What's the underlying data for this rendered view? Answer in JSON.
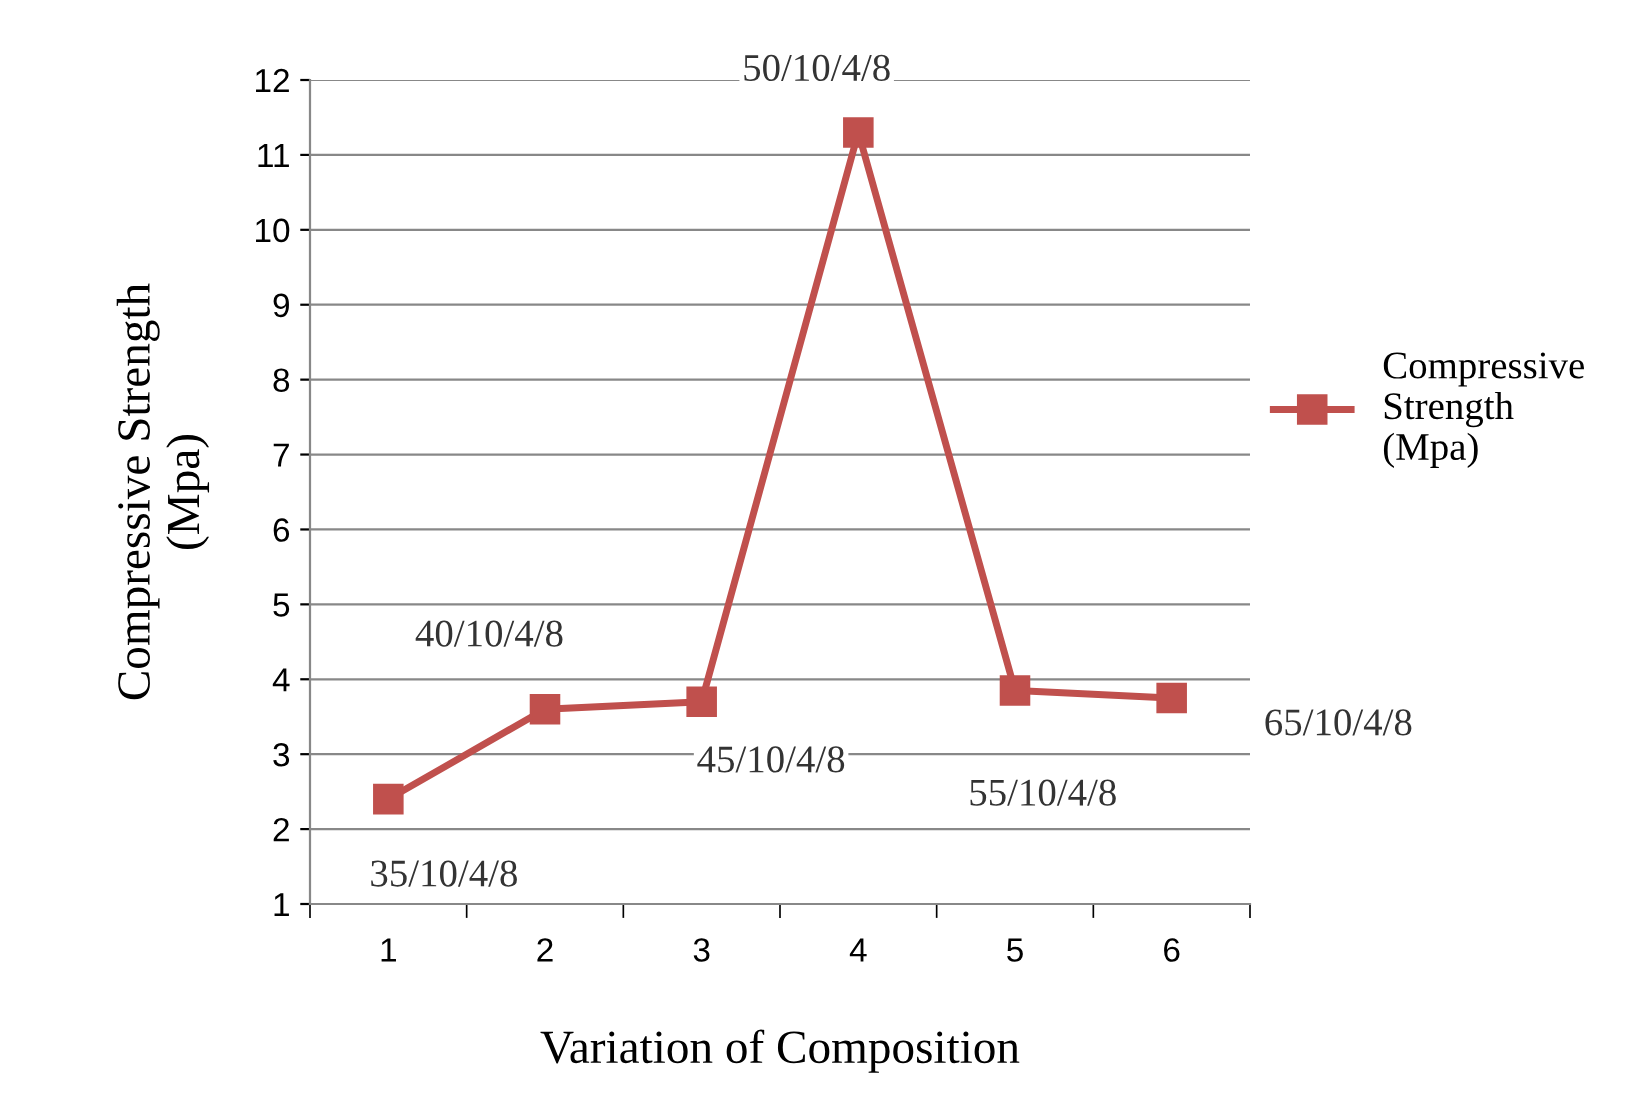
{
  "chart_data": {
    "type": "line",
    "xlabel": "Variation of Composition",
    "ylabel": "Compressive Strength\n(Mpa)",
    "categories": [
      "1",
      "2",
      "3",
      "4",
      "5",
      "6"
    ],
    "series": [
      {
        "name": "Compressive\nStrength\n(Mpa)",
        "color": "#c0504d",
        "values": [
          2.4,
          3.6,
          3.7,
          11.3,
          3.85,
          3.75
        ]
      }
    ],
    "ylim": [
      1,
      12
    ],
    "yticks": [
      1,
      2,
      3,
      4,
      5,
      6,
      7,
      8,
      9,
      10,
      11,
      12
    ],
    "grid": "y",
    "legend": "right",
    "marker": "square",
    "line_style": "solid",
    "annotations": [
      {
        "text": "35/10/4/8",
        "x": "1",
        "y": 2.4
      },
      {
        "text": "40/10/4/8",
        "x": "2",
        "y": 3.6
      },
      {
        "text": "45/10/4/8",
        "x": "3",
        "y": 3.7
      },
      {
        "text": "50/10/4/8",
        "x": "4",
        "y": 11.3
      },
      {
        "text": "55/10/4/8",
        "x": "5",
        "y": 3.85
      },
      {
        "text": "65/10/4/8",
        "x": "6",
        "y": 3.75
      }
    ]
  }
}
